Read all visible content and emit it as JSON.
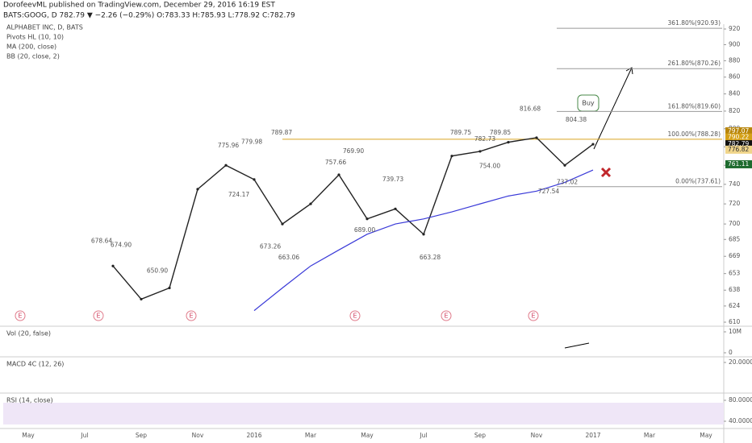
{
  "chart_data": {
    "type": "line",
    "publisher": "DorofeevML published on TradingView.com, December 29, 2016 16:19 EST",
    "quote": "BATS:GOOG, D 782.79 ▼ −2.26 (−0.29%) O:783.33 H:785.93 L:778.92 C:782.79",
    "title": "ALPHABET INC, D, BATS",
    "studies": [
      "Pivots HL (10, 10)",
      "MA (200, close)",
      "BB (20, close, 2)"
    ],
    "log_scale": true,
    "categories": [
      "May",
      null,
      "Jul",
      null,
      "Sep",
      null,
      "Nov",
      null,
      "2016",
      null,
      "Mar",
      null,
      "May",
      null,
      "Jul",
      null,
      "Sep",
      null,
      "Nov",
      null,
      "2017",
      null,
      "Mar",
      null,
      "May"
    ],
    "series": [
      {
        "name": "GOOG",
        "color": "#222222",
        "values": [
          null,
          null,
          null,
          660,
          630,
          640,
          735,
          760,
          745,
          700,
          720,
          750,
          705,
          715,
          690,
          770,
          775,
          785,
          790,
          760,
          782.79,
          null,
          null,
          null,
          null
        ]
      },
      {
        "name": "MA (200, close)",
        "color": "#3a3ad8",
        "values": [
          null,
          null,
          null,
          null,
          null,
          null,
          null,
          null,
          620,
          640,
          660,
          675,
          690,
          700,
          705,
          712,
          720,
          728,
          733,
          742,
          755,
          null,
          null,
          null,
          null
        ]
      }
    ],
    "ylim": [
      610,
      920
    ],
    "yticks": [
      920,
      900,
      880,
      860,
      840,
      820,
      800,
      780,
      760,
      740,
      720,
      700,
      685,
      669,
      653,
      638,
      624,
      610
    ],
    "annotations": [
      {
        "label": "678.64",
        "value": 678.64
      },
      {
        "label": "674.90",
        "value": 674.9
      },
      {
        "label": "650.90",
        "value": 650.9
      },
      {
        "label": "775.96",
        "value": 775.96
      },
      {
        "label": "779.98",
        "value": 779.98
      },
      {
        "label": "724.17",
        "value": 724.17
      },
      {
        "label": "789.87",
        "value": 789.87
      },
      {
        "label": "673.26",
        "value": 673.26
      },
      {
        "label": "663.06",
        "value": 663.06
      },
      {
        "label": "757.66",
        "value": 757.66
      },
      {
        "label": "769.90",
        "value": 769.9
      },
      {
        "label": "689.00",
        "value": 689
      },
      {
        "label": "739.73",
        "value": 739.73
      },
      {
        "label": "663.28",
        "value": 663.28
      },
      {
        "label": "789.75",
        "value": 789.75
      },
      {
        "label": "782.73",
        "value": 782.73
      },
      {
        "label": "789.85",
        "value": 789.85
      },
      {
        "label": "754.00",
        "value": 754
      },
      {
        "label": "816.68",
        "value": 816.68
      },
      {
        "label": "727.54",
        "value": 727.54
      },
      {
        "label": "804.38",
        "value": 804.38
      },
      {
        "label": "737.02",
        "value": 737.02
      }
    ],
    "fib_levels": [
      {
        "label": "361.80%(920.93)",
        "value": 920.93
      },
      {
        "label": "261.80%(870.26)",
        "value": 870.26
      },
      {
        "label": "161.80%(819.60)",
        "value": 819.6
      },
      {
        "label": "100.00%(788.28)",
        "value": 788.28
      },
      {
        "label": "0.00%(737.61)",
        "value": 737.61
      }
    ],
    "price_tags": [
      {
        "label": "797.07",
        "value": 797.07,
        "color": "#b8860b"
      },
      {
        "label": "790.22",
        "value": 790.22,
        "color": "#d4a017"
      },
      {
        "label": "782.79",
        "value": 782.79,
        "color": "#111111"
      },
      {
        "label": "776.82",
        "value": 776.82,
        "color": "#f0d58a"
      },
      {
        "label": "761.11",
        "value": 761.11,
        "color": "#1e6b2e"
      }
    ],
    "buy_label": "Buy",
    "earnings": [
      "E",
      "E",
      "E",
      "E",
      "E",
      "E"
    ],
    "indicators": [
      {
        "name": "Vol (20, false)",
        "ticks": [
          {
            "value": 10000000,
            "label": "10M"
          },
          0
        ]
      },
      {
        "name": "MACD 4C (12, 26)",
        "ticks": [
          {
            "value": 20,
            "label": "20.0000"
          }
        ]
      },
      {
        "name": "RSI (14, close)",
        "ticks": [
          {
            "value": 80,
            "label": "80.0000"
          },
          {
            "value": 40,
            "label": "40.0000"
          }
        ]
      }
    ]
  }
}
